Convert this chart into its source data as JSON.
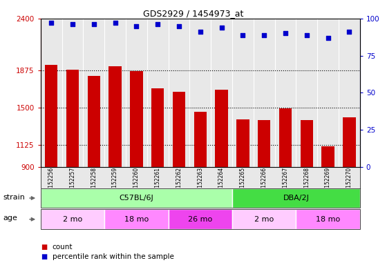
{
  "title": "GDS2929 / 1454973_at",
  "samples": [
    "GSM152256",
    "GSM152257",
    "GSM152258",
    "GSM152259",
    "GSM152260",
    "GSM152261",
    "GSM152262",
    "GSM152263",
    "GSM152264",
    "GSM152265",
    "GSM152266",
    "GSM152267",
    "GSM152268",
    "GSM152269",
    "GSM152270"
  ],
  "counts": [
    1930,
    1880,
    1820,
    1920,
    1870,
    1695,
    1660,
    1460,
    1680,
    1380,
    1375,
    1490,
    1375,
    1110,
    1400
  ],
  "percentiles": [
    97,
    96,
    96,
    97,
    95,
    96,
    95,
    91,
    94,
    89,
    89,
    90,
    89,
    87,
    91
  ],
  "ylim_left": [
    900,
    2400
  ],
  "ylim_right": [
    0,
    100
  ],
  "yticks_left": [
    900,
    1125,
    1500,
    1875,
    2400
  ],
  "yticks_right": [
    0,
    25,
    50,
    75,
    100
  ],
  "dotted_lines": [
    1875,
    1500,
    1125
  ],
  "bar_color": "#cc0000",
  "dot_color": "#0000cc",
  "strain_groups": [
    {
      "label": "C57BL/6J",
      "start": 0,
      "end": 9,
      "color": "#aaffaa"
    },
    {
      "label": "DBA/2J",
      "start": 9,
      "end": 15,
      "color": "#44dd44"
    }
  ],
  "age_groups": [
    {
      "label": "2 mo",
      "start": 0,
      "end": 3,
      "color": "#ffccff"
    },
    {
      "label": "18 mo",
      "start": 3,
      "end": 6,
      "color": "#ff88ff"
    },
    {
      "label": "26 mo",
      "start": 6,
      "end": 9,
      "color": "#ee44ee"
    },
    {
      "label": "2 mo",
      "start": 9,
      "end": 12,
      "color": "#ffccff"
    },
    {
      "label": "18 mo",
      "start": 12,
      "end": 15,
      "color": "#ff88ff"
    }
  ],
  "strain_label": "strain",
  "age_label": "age",
  "legend_count": "count",
  "legend_pct": "percentile rank within the sample",
  "bar_color_red": "#cc0000",
  "dot_color_blue": "#0000cc",
  "bg_color": "#e8e8e8",
  "tick_label_color_left": "#cc0000",
  "tick_label_color_right": "#0000cc"
}
